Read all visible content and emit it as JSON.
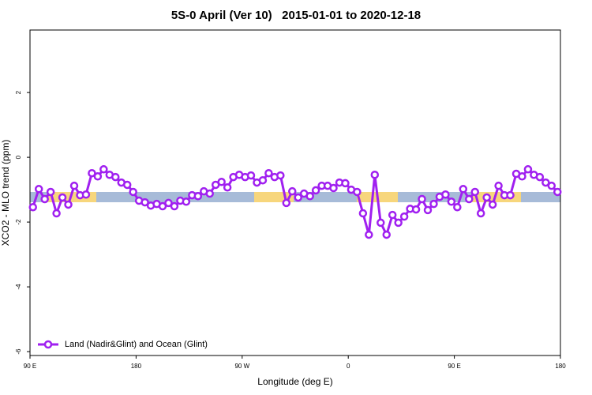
{
  "chart_data": {
    "type": "line",
    "title": "5S-0 April (Ver 10)   2015-01-01 to 2020-12-18",
    "x_label": "Longitude (deg E)",
    "y_label": "XCO2 - MLO trend (ppm)",
    "xlim": [
      90,
      540
    ],
    "xticks": [
      {
        "value": 90,
        "label": "90 E"
      },
      180,
      {
        "value": 270,
        "label": "90 W"
      },
      {
        "value": 360,
        "label": "0"
      },
      {
        "value": 450,
        "label": "90 E"
      },
      {
        "value": 540,
        "label": "180"
      }
    ],
    "ylim": [
      -6.12,
      3.93
    ],
    "yticks": [
      -6,
      -4,
      -2,
      0,
      2
    ],
    "legend": "bottom-left",
    "x": [
      92.5,
      97.5,
      102.5,
      107.5,
      112.5,
      117.5,
      122.5,
      127.5,
      132.5,
      137.5,
      142.5,
      147.5,
      152.5,
      157.5,
      162.5,
      167.5,
      172.5,
      177.5,
      182.5,
      187.5,
      192.5,
      197.5,
      202.5,
      207.5,
      212.5,
      217.5,
      222.5,
      227.5,
      232.5,
      237.5,
      242.5,
      247.5,
      252.5,
      257.5,
      262.5,
      267.5,
      272.5,
      277.5,
      282.5,
      287.5,
      292.5,
      297.5,
      302.5,
      307.5,
      312.5,
      317.5,
      322.5,
      327.5,
      332.5,
      337.5,
      342.5,
      347.5,
      352.5,
      357.5,
      362.5,
      367.5,
      372.5,
      377.5,
      382.5,
      387.5,
      392.5,
      397.5,
      402.5,
      407.5,
      412.5,
      417.5,
      422.5,
      427.5,
      432.5,
      437.5,
      442.5,
      447.5,
      452.5,
      457.5,
      462.5,
      467.5,
      472.5,
      477.5,
      482.5,
      487.5,
      492.5,
      497.5,
      502.5,
      507.5,
      512.5,
      517.5,
      522.5,
      527.5,
      532.5,
      537.5
    ],
    "series": [
      {
        "name": "Land (Nadir&Glint) and Ocean (Glint)",
        "color": "#a020f0",
        "values": [
          -1.54,
          -0.98,
          -1.29,
          -1.07,
          -1.73,
          -1.24,
          -1.46,
          -0.88,
          -1.17,
          -1.15,
          -0.49,
          -0.59,
          -0.37,
          -0.54,
          -0.61,
          -0.78,
          -0.85,
          -1.07,
          -1.34,
          -1.39,
          -1.49,
          -1.44,
          -1.51,
          -1.41,
          -1.51,
          -1.34,
          -1.37,
          -1.17,
          -1.2,
          -1.05,
          -1.12,
          -0.85,
          -0.76,
          -0.93,
          -0.61,
          -0.54,
          -0.61,
          -0.56,
          -0.78,
          -0.71,
          -0.49,
          -0.61,
          -0.56,
          -1.41,
          -1.05,
          -1.24,
          -1.12,
          -1.2,
          -1.02,
          -0.88,
          -0.88,
          -0.95,
          -0.78,
          -0.8,
          -1.0,
          -1.07,
          -1.73,
          -2.39,
          -0.54,
          -2.02,
          -2.39,
          -1.78,
          -2.02,
          -1.83,
          -1.59,
          -1.61,
          -1.29,
          -1.63,
          -1.44,
          -1.22,
          -1.15,
          -1.37,
          -1.54,
          -0.98,
          -1.29,
          -1.07,
          -1.73,
          -1.24,
          -1.46,
          -0.88,
          -1.17,
          -1.17,
          -0.51,
          -0.59,
          -0.37,
          -0.54,
          -0.61,
          -0.78,
          -0.88,
          -1.07
        ]
      }
    ]
  }
}
